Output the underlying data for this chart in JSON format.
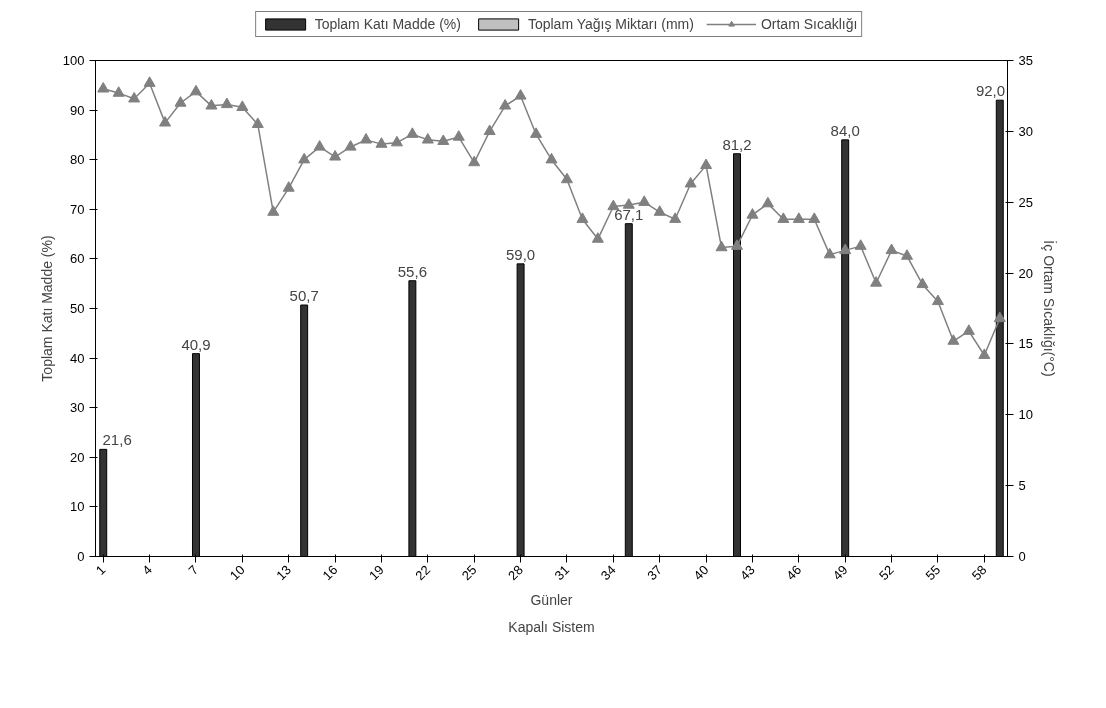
{
  "chart_data": {
    "type": "bar",
    "xlabel": "Günler",
    "ylabel": "Toplam Katı Madde (%)",
    "y2label": "İç Ortam Sıcaklığı(°C)",
    "annotations": [
      "Kapalı Sistem"
    ],
    "categories": [
      "1",
      null,
      null,
      "4",
      null,
      null,
      "7",
      null,
      null,
      "10",
      null,
      null,
      "13",
      null,
      null,
      "16",
      null,
      null,
      "19",
      null,
      null,
      "22",
      null,
      null,
      "25",
      null,
      null,
      "28",
      null,
      null,
      "31",
      null,
      null,
      "34",
      null,
      null,
      "37",
      null,
      null,
      "40",
      null,
      null,
      "43",
      null,
      null,
      "46",
      null,
      null,
      "49",
      null,
      null,
      "52",
      null,
      null,
      "55",
      null,
      null,
      "58",
      null
    ],
    "series": [
      {
        "name": "Toplam Katı Madde (%)",
        "color": "#333333",
        "values": [
          21.6,
          null,
          null,
          null,
          null,
          null,
          40.9,
          null,
          null,
          null,
          null,
          null,
          null,
          50.7,
          null,
          null,
          null,
          null,
          null,
          null,
          55.6,
          null,
          null,
          null,
          null,
          null,
          null,
          59.0,
          null,
          null,
          null,
          null,
          null,
          null,
          67.1,
          null,
          null,
          null,
          null,
          null,
          null,
          81.2,
          null,
          null,
          null,
          null,
          null,
          null,
          84.0,
          null,
          null,
          null,
          null,
          null,
          null,
          null,
          null,
          null,
          92.0
        ],
        "value_labels": [
          "21,6",
          null,
          null,
          null,
          null,
          null,
          "40,9",
          null,
          null,
          null,
          null,
          null,
          null,
          "50,7",
          null,
          null,
          null,
          null,
          null,
          null,
          "55,6",
          null,
          null,
          null,
          null,
          null,
          null,
          "59,0",
          null,
          null,
          null,
          null,
          null,
          null,
          "67,1",
          null,
          null,
          null,
          null,
          null,
          null,
          "81,2",
          null,
          null,
          null,
          null,
          null,
          null,
          "84,0",
          null,
          null,
          null,
          null,
          null,
          null,
          null,
          null,
          null,
          "92,0"
        ]
      },
      {
        "name": "Toplam Yağış Miktarı (mm)",
        "color": "#c0c0c0",
        "values": [
          null,
          null,
          null,
          null,
          null,
          null,
          null,
          null,
          null,
          null,
          null,
          null,
          null,
          null,
          null,
          null,
          null,
          null,
          null,
          null,
          null,
          null,
          null,
          null,
          null,
          null,
          null,
          null,
          null,
          null,
          null,
          null,
          null,
          null,
          null,
          null,
          null,
          null,
          null,
          null,
          null,
          null,
          null,
          null,
          null,
          null,
          null,
          null,
          null,
          null,
          null,
          null,
          null,
          null,
          null,
          null,
          null,
          null,
          null
        ]
      },
      {
        "name": "Ortam Sıcaklığı",
        "type": "line",
        "axis": "y2",
        "color": "#808080",
        "marker": "triangle",
        "values": [
          33.0,
          32.7,
          32.3,
          33.4,
          30.6,
          32.0,
          32.8,
          31.8,
          31.9,
          31.7,
          30.5,
          24.3,
          26.0,
          28.0,
          28.9,
          28.2,
          28.9,
          29.4,
          29.1,
          29.2,
          29.8,
          29.4,
          29.3,
          29.6,
          27.8,
          30.0,
          31.8,
          32.5,
          29.8,
          28.0,
          26.6,
          23.8,
          22.4,
          24.7,
          24.8,
          25.0,
          24.3,
          23.8,
          26.3,
          27.6,
          21.8,
          21.9,
          24.1,
          24.9,
          23.8,
          23.8,
          23.8,
          21.3,
          21.6,
          21.9,
          19.3,
          21.6,
          21.2,
          19.2,
          18.0,
          15.2,
          15.9,
          14.2,
          16.8
        ]
      }
    ],
    "ylim": [
      0,
      100
    ],
    "yticks": [
      0,
      10,
      20,
      30,
      40,
      50,
      60,
      70,
      80,
      90,
      100
    ],
    "y2lim": [
      0,
      35
    ],
    "y2ticks": [
      0,
      5,
      10,
      15,
      20,
      25,
      30,
      35
    ],
    "grid": false,
    "legend": "top"
  }
}
